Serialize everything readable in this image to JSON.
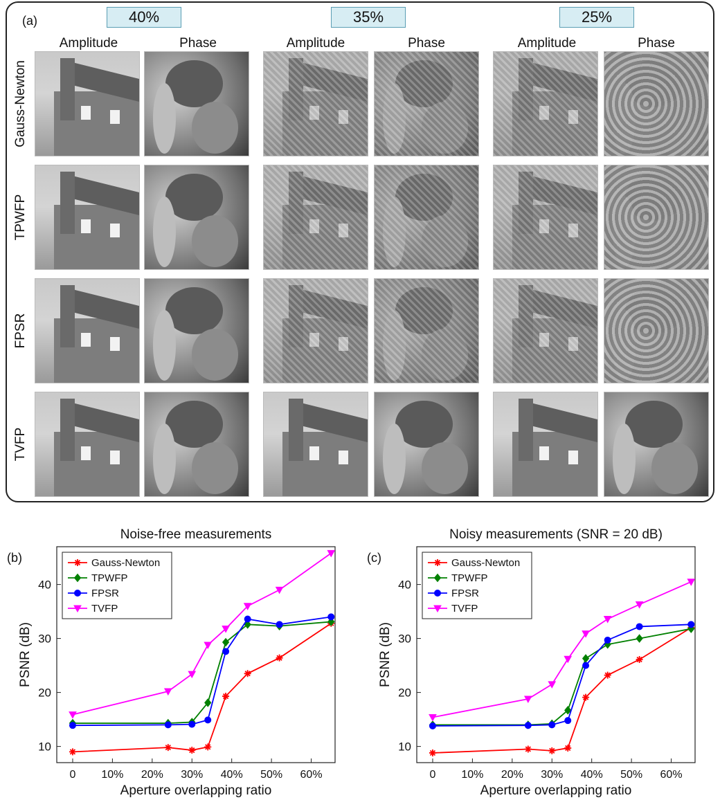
{
  "panel_a": {
    "label": "(a)",
    "ratios": [
      "40%",
      "35%",
      "25%"
    ],
    "column_headers": [
      "Amplitude",
      "Phase",
      "Amplitude",
      "Phase",
      "Amplitude",
      "Phase"
    ],
    "rows": [
      "Gauss-Newton",
      "TPWFP",
      "FPSR",
      "TVFP"
    ]
  },
  "chart_data": [
    {
      "type": "line",
      "panel_label": "(b)",
      "title": "Noise-free measurements",
      "xlabel": "Aperture overlapping ratio",
      "ylabel": "PSNR (dB)",
      "x_tick_labels": [
        "0",
        "10%",
        "20%",
        "30%",
        "40%",
        "50%",
        "60%"
      ],
      "x_ticks": [
        0,
        10,
        20,
        30,
        40,
        50,
        60
      ],
      "y_ticks": [
        10,
        20,
        30,
        40
      ],
      "xlim": [
        -4,
        66
      ],
      "ylim": [
        7,
        47
      ],
      "legend_position": "top-left",
      "x": [
        0,
        24,
        30,
        34,
        38.5,
        44,
        52,
        65
      ],
      "series": [
        {
          "name": "Gauss-Newton",
          "color": "#ff0000",
          "marker": "asterisk",
          "values": [
            9.0,
            9.8,
            9.3,
            9.9,
            19.3,
            23.5,
            26.4,
            32.8
          ]
        },
        {
          "name": "TPWFP",
          "color": "#008000",
          "marker": "diamond",
          "values": [
            14.3,
            14.3,
            14.5,
            18.1,
            29.3,
            32.6,
            32.3,
            33.1
          ]
        },
        {
          "name": "FPSR",
          "color": "#0000ff",
          "marker": "circle",
          "values": [
            13.9,
            14.0,
            14.1,
            14.9,
            27.6,
            33.6,
            32.6,
            34.0
          ]
        },
        {
          "name": "TVFP",
          "color": "#ff00ff",
          "marker": "triangle-down",
          "values": [
            15.9,
            20.2,
            23.4,
            28.8,
            31.8,
            36.0,
            39.0,
            45.8
          ]
        }
      ]
    },
    {
      "type": "line",
      "panel_label": "(c)",
      "title": "Noisy measurements (SNR = 20 dB)",
      "xlabel": "Aperture overlapping ratio",
      "ylabel": "PSNR (dB)",
      "x_tick_labels": [
        "0",
        "10%",
        "20%",
        "30%",
        "40%",
        "50%",
        "60%"
      ],
      "x_ticks": [
        0,
        10,
        20,
        30,
        40,
        50,
        60
      ],
      "y_ticks": [
        10,
        20,
        30,
        40
      ],
      "xlim": [
        -4,
        66
      ],
      "ylim": [
        7,
        47
      ],
      "legend_position": "top-left",
      "x": [
        0,
        24,
        30,
        34,
        38.5,
        44,
        52,
        65
      ],
      "series": [
        {
          "name": "Gauss-Newton",
          "color": "#ff0000",
          "marker": "asterisk",
          "values": [
            8.8,
            9.5,
            9.2,
            9.7,
            19.1,
            23.2,
            26.1,
            32.0
          ]
        },
        {
          "name": "TPWFP",
          "color": "#008000",
          "marker": "diamond",
          "values": [
            14.0,
            14.0,
            14.2,
            16.7,
            26.3,
            28.9,
            30.0,
            31.8
          ]
        },
        {
          "name": "FPSR",
          "color": "#0000ff",
          "marker": "circle",
          "values": [
            13.8,
            13.9,
            14.0,
            14.8,
            25.0,
            29.7,
            32.2,
            32.6
          ]
        },
        {
          "name": "TVFP",
          "color": "#ff00ff",
          "marker": "triangle-down",
          "values": [
            15.4,
            18.8,
            21.5,
            26.2,
            30.9,
            33.6,
            36.3,
            40.5
          ]
        }
      ]
    }
  ]
}
